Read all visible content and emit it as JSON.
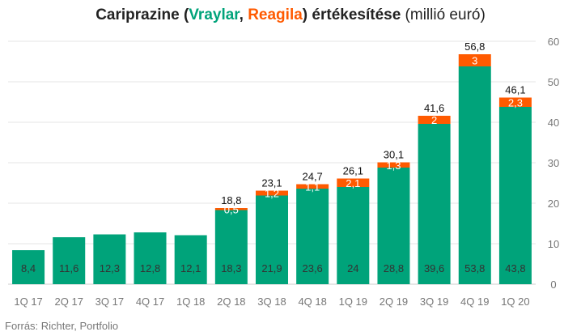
{
  "title": {
    "part1": "Cariprazine (",
    "part2": "Vraylar",
    "part3": ", ",
    "part4": "Reagila",
    "part5": ") értékesítése",
    "part6": " (millió euró)"
  },
  "source": "Forrás: Richter, Portfolio",
  "colors": {
    "vraylar": "#00A37A",
    "reagila": "#FF5A00",
    "grid": "#e6e6e6",
    "label_dark": "#333333",
    "label_light": "#ffffff"
  },
  "chart_data": {
    "type": "bar",
    "stacked": true,
    "categories": [
      "1Q 17",
      "2Q 17",
      "3Q 17",
      "4Q 17",
      "1Q 18",
      "2Q 18",
      "3Q 18",
      "4Q 18",
      "1Q 19",
      "2Q 19",
      "3Q 19",
      "4Q 19",
      "1Q 20"
    ],
    "series": [
      {
        "name": "Vraylar",
        "values": [
          8.4,
          11.6,
          12.3,
          12.8,
          12.1,
          18.3,
          21.9,
          23.6,
          24,
          28.8,
          39.6,
          53.8,
          43.8
        ],
        "labels": [
          "8,4",
          "11,6",
          "12,3",
          "12,8",
          "12,1",
          "18,3",
          "21,9",
          "23,6",
          "24",
          "28,8",
          "39,6",
          "53,8",
          "43,8"
        ]
      },
      {
        "name": "Reagila",
        "values": [
          null,
          null,
          null,
          null,
          null,
          0.5,
          1.2,
          1.1,
          2.1,
          1.3,
          2,
          3,
          2.3
        ],
        "labels": [
          "",
          "",
          "",
          "",
          "",
          "0,5",
          "1,2",
          "1,1",
          "2,1",
          "1,3",
          "2",
          "3",
          "2,3"
        ]
      }
    ],
    "totals": [
      "",
      "",
      "",
      "",
      "",
      "18,8",
      "23,1",
      "24,7",
      "26,1",
      "30,1",
      "41,6",
      "56,8",
      "46,1"
    ],
    "y_axis": {
      "position": "right",
      "min": 0,
      "max": 60,
      "ticks": [
        "0",
        "10",
        "20",
        "30",
        "40",
        "50",
        "60"
      ]
    },
    "grid": true,
    "legend": "in title"
  }
}
